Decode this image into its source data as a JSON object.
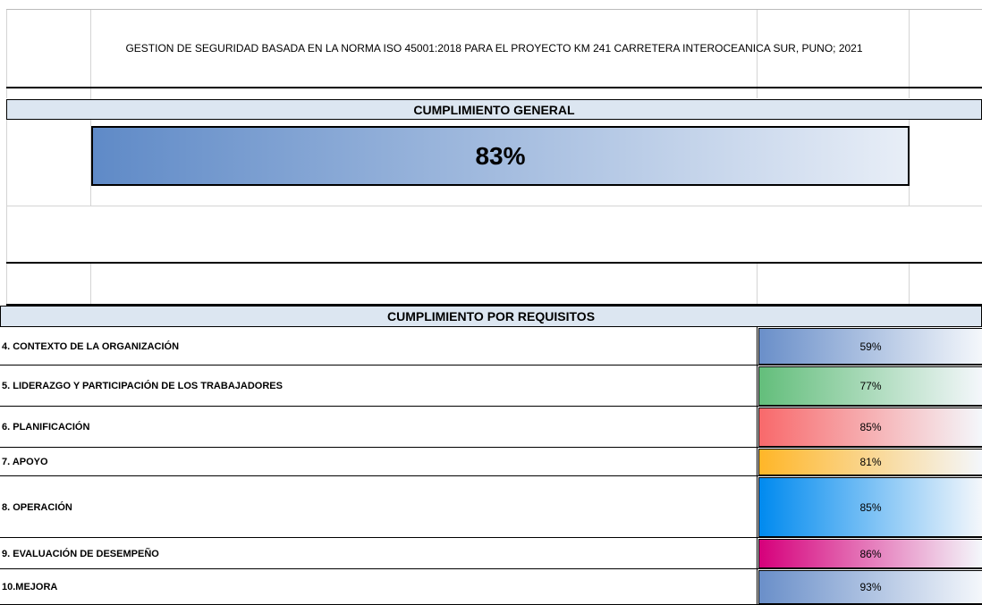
{
  "header": {
    "title": "GESTION DE SEGURIDAD BASADA EN LA NORMA ISO 45001:2018 PARA EL PROYECTO KM 241 CARRETERA INTEROCEANICA SUR, PUNO; 2021"
  },
  "general": {
    "heading": "CUMPLIMIENTO GENERAL",
    "value": "83%",
    "color": "#5f8ac7"
  },
  "requirements": {
    "heading": "CUMPLIMIENTO POR REQUISITOS",
    "rows": [
      {
        "label": "4. CONTEXTO DE LA ORGANIZACIÓN",
        "value": "59%",
        "color": "#6a8fc9"
      },
      {
        "label": "5. LIDERAZGO  Y  PARTICIPACIÓN DE LOS TRABAJADORES",
        "value": "77%",
        "color": "#63be7b"
      },
      {
        "label": "6. PLANIFICACIÓN",
        "value": "85%",
        "color": "#f8696b"
      },
      {
        "label": "7. APOYO",
        "value": "81%",
        "color": "#ffb628"
      },
      {
        "label": "8. OPERACIÓN",
        "value": "85%",
        "color": "#008aef"
      },
      {
        "label": "9. EVALUACIÓN DE DESEMPEÑO",
        "value": "86%",
        "color": "#d6007b"
      },
      {
        "label": "10.MEJORA",
        "value": "93%",
        "color": "#6a8fc9"
      }
    ]
  }
}
